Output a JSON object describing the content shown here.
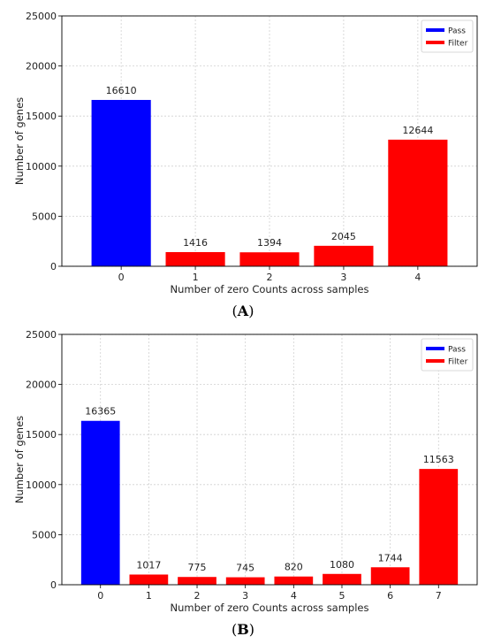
{
  "chart_data": [
    {
      "type": "bar",
      "panel_label": "A",
      "xlabel": "Number of zero Counts across samples",
      "ylabel": "Number of genes",
      "ylim": [
        0,
        25000
      ],
      "yticks": [
        0,
        5000,
        10000,
        15000,
        20000,
        25000
      ],
      "categories": [
        "0",
        "1",
        "2",
        "3",
        "4"
      ],
      "values": [
        16610,
        1416,
        1394,
        2045,
        12644
      ],
      "bar_series": [
        "Pass",
        "Filter",
        "Filter",
        "Filter",
        "Filter"
      ],
      "grid": true,
      "legend": {
        "position": "top-right",
        "entries": [
          {
            "name": "Pass",
            "color": "#0000ff"
          },
          {
            "name": "Filter",
            "color": "#ff0000"
          }
        ]
      }
    },
    {
      "type": "bar",
      "panel_label": "B",
      "xlabel": "Number of zero Counts across samples",
      "ylabel": "Number of genes",
      "ylim": [
        0,
        25000
      ],
      "yticks": [
        0,
        5000,
        10000,
        15000,
        20000,
        25000
      ],
      "categories": [
        "0",
        "1",
        "2",
        "3",
        "4",
        "5",
        "6",
        "7"
      ],
      "values": [
        16365,
        1017,
        775,
        745,
        820,
        1080,
        1744,
        11563
      ],
      "bar_series": [
        "Pass",
        "Filter",
        "Filter",
        "Filter",
        "Filter",
        "Filter",
        "Filter",
        "Filter"
      ],
      "grid": true,
      "legend": {
        "position": "top-right",
        "entries": [
          {
            "name": "Pass",
            "color": "#0000ff"
          },
          {
            "name": "Filter",
            "color": "#ff0000"
          }
        ]
      }
    }
  ],
  "captions": {
    "a": "A",
    "b": "B"
  }
}
